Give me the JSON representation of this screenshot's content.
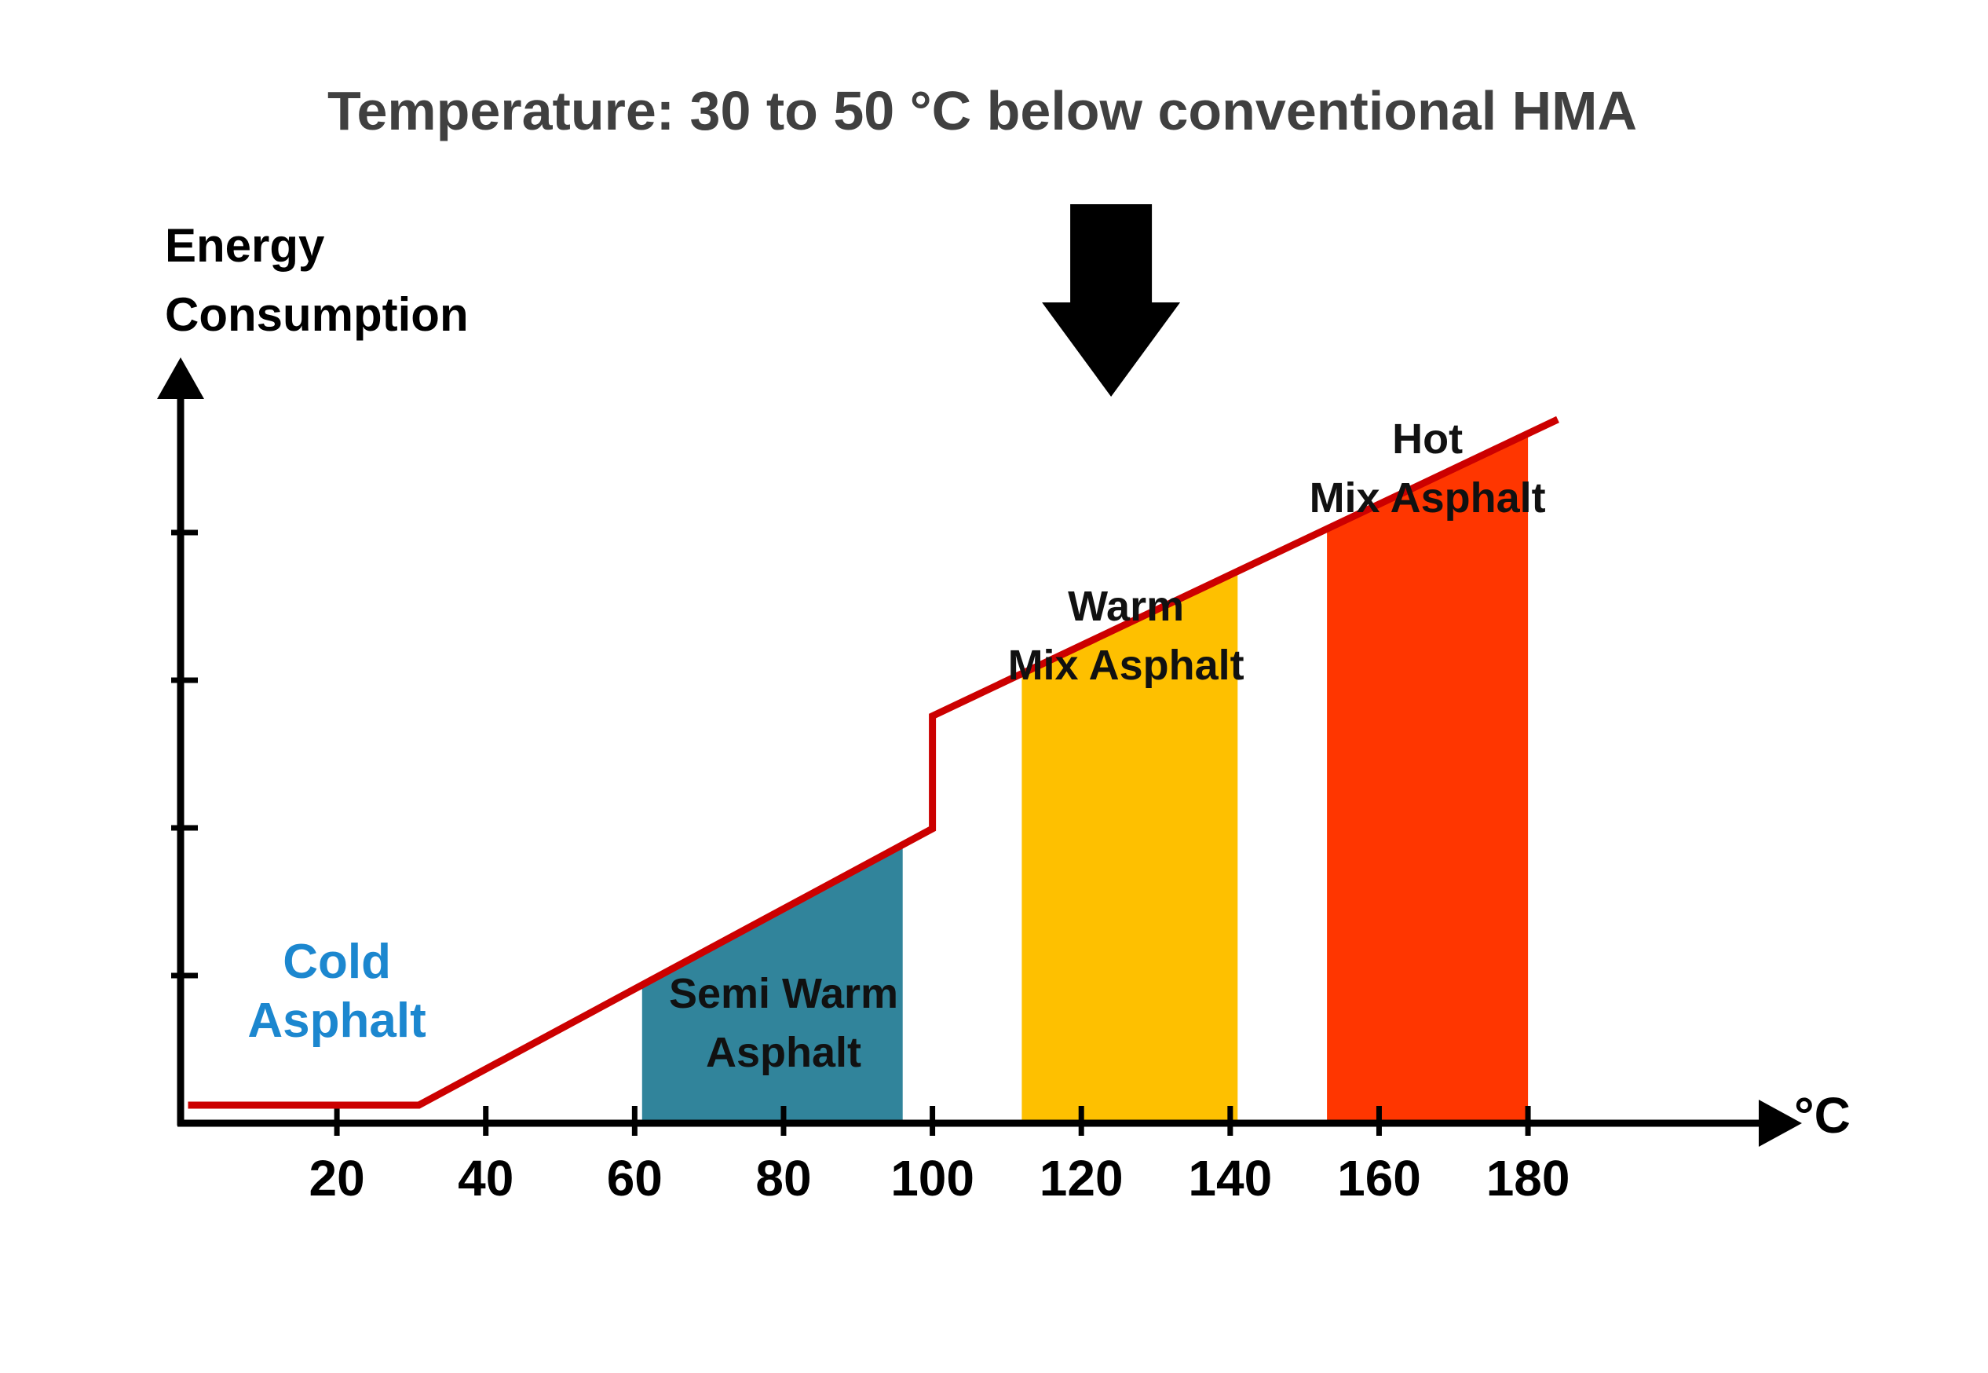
{
  "chart_data": {
    "type": "line",
    "title": "Temperature: 30 to 50 °C below conventional HMA",
    "ylabel_lines": [
      "Energy",
      "Consumption"
    ],
    "xunit": "°C",
    "xlim": [
      -1,
      211
    ],
    "ylim": [
      0,
      7.5
    ],
    "x_ticks": [
      20,
      40,
      60,
      80,
      100,
      120,
      140,
      160,
      180
    ],
    "y_tick_count": 4,
    "series": [
      {
        "color": "#cc0000",
        "x": [
          0,
          31,
          100,
          100,
          184
        ],
        "y": [
          0.18,
          0.18,
          2.93,
          4.05,
          7.0
        ]
      }
    ],
    "bands": [
      {
        "lines": [
          "Cold",
          "Asphalt"
        ],
        "label_x": 20,
        "label_color": "#1c87cf"
      },
      {
        "lines": [
          "Semi Warm",
          "Asphalt"
        ],
        "x0": 61,
        "x1": 96,
        "color": "#31849b",
        "label_x": 80,
        "label_color": "#111111"
      },
      {
        "lines": [
          "Warm",
          "Mix Asphalt"
        ],
        "x0": 112,
        "x1": 141,
        "color": "#fec000",
        "label_x": 126,
        "label_color": "#111111"
      },
      {
        "lines": [
          "Hot",
          "Mix Asphalt"
        ],
        "x0": 153,
        "x1": 180,
        "color": "#ff3600",
        "label_x": 166.5,
        "label_color": "#111111"
      }
    ],
    "arrow_marker_x": 124,
    "grid": false,
    "legend": "none"
  }
}
